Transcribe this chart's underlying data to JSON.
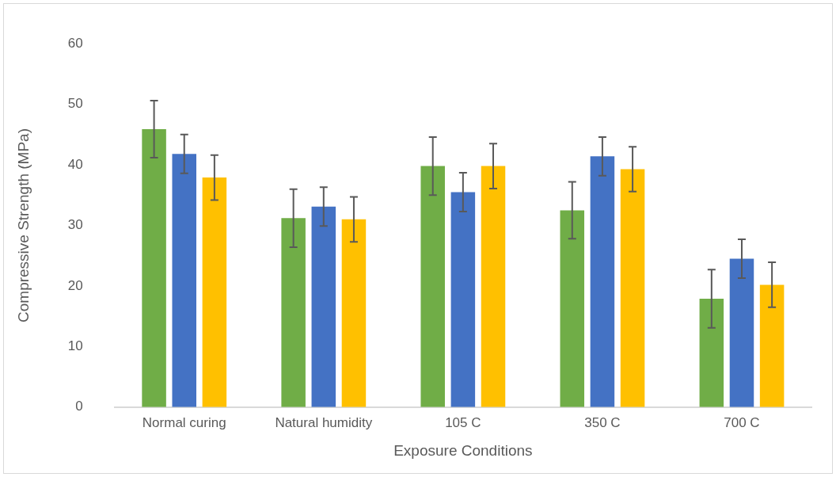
{
  "chart_data": {
    "type": "bar",
    "xlabel": "Exposure Conditions",
    "ylabel": "Compressive Strength (MPa)",
    "categories": [
      "Normal curing",
      "Natural humidity",
      "105 C",
      "350 C",
      "700 C"
    ],
    "series": [
      {
        "color": "#70ad47",
        "values": [
          45.9,
          31.2,
          39.8,
          32.5,
          17.9
        ],
        "errors": [
          4.7,
          4.8,
          4.8,
          4.7,
          4.8
        ]
      },
      {
        "color": "#4472c4",
        "values": [
          41.8,
          33.1,
          35.5,
          41.4,
          24.5
        ],
        "errors": [
          3.2,
          3.2,
          3.2,
          3.2,
          3.2
        ]
      },
      {
        "color": "#ffc000",
        "values": [
          37.9,
          31.0,
          39.8,
          39.3,
          20.2
        ],
        "errors": [
          3.7,
          3.7,
          3.7,
          3.7,
          3.7
        ]
      }
    ],
    "ylim": [
      0,
      60
    ],
    "yticks": [
      0,
      10,
      20,
      30,
      40,
      50,
      60
    ],
    "grid": false,
    "legend": false
  }
}
